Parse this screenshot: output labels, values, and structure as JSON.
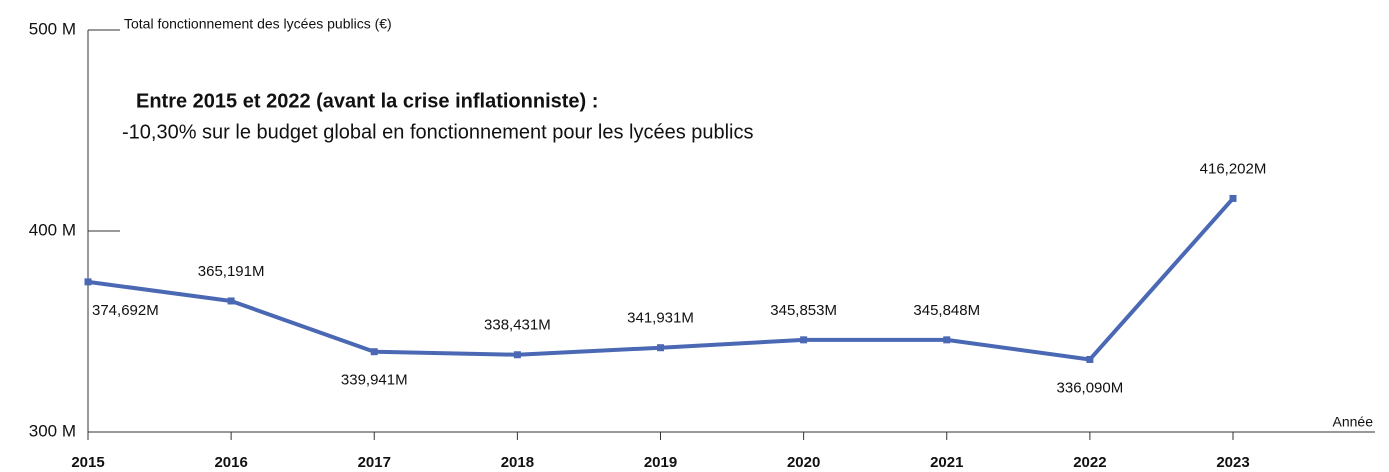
{
  "chart_data": {
    "type": "line",
    "y_axis_label": "Total fonctionnement des lycées publics (€)",
    "x_axis_label": "Année",
    "annotation_title": "Entre 2015 et 2022 (avant la crise inflationniste) :",
    "annotation_text": "-10,30% sur le budget global en fonctionnement pour les lycées publics",
    "x": [
      2015,
      2016,
      2017,
      2018,
      2019,
      2020,
      2021,
      2022,
      2023
    ],
    "xlim": [
      2015,
      2023
    ],
    "xticks": [
      2015,
      2016,
      2017,
      2018,
      2019,
      2020,
      2021,
      2022,
      2023
    ],
    "ylim": [
      300000000,
      500000000
    ],
    "yticks": [
      {
        "value": 300000000,
        "label": "300 M"
      },
      {
        "value": 400000000,
        "label": "400 M"
      },
      {
        "value": 500000000,
        "label": "500 M"
      }
    ],
    "series": [
      {
        "name": "Total fonctionnement des lycées publics (€)",
        "color": "#4a68b3",
        "values": [
          374692000,
          365191000,
          339941000,
          338431000,
          341931000,
          345853000,
          345848000,
          336090000,
          416202000
        ],
        "value_labels": [
          "374,692M",
          "365,191M",
          "339,941M",
          "338,431M",
          "341,931M",
          "345,853M",
          "345,848M",
          "336,090M",
          "416,202M"
        ]
      }
    ]
  }
}
